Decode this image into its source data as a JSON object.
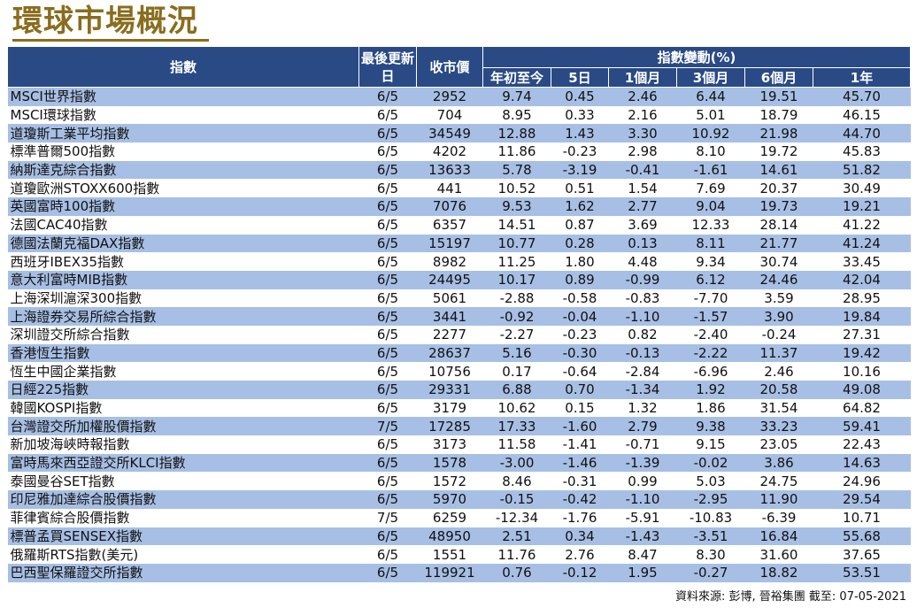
{
  "title": "環球市場概況",
  "headers": {
    "index": "指數",
    "last_update": "最後更新日",
    "close": "收市價",
    "change_group": "指數變動(%)",
    "ytd": "年初至今",
    "d5": "5日",
    "m1": "1個月",
    "m3": "3個月",
    "m6": "6個月",
    "y1": "1年"
  },
  "rows": [
    {
      "name": "MSCI世界指數",
      "date": "6/5",
      "close": "2952",
      "ytd": "9.74",
      "d5": "0.45",
      "m1": "2.46",
      "m3": "6.44",
      "m6": "19.51",
      "y1": "45.70"
    },
    {
      "name": "MSCI環球指數",
      "date": "6/5",
      "close": "704",
      "ytd": "8.95",
      "d5": "0.33",
      "m1": "2.16",
      "m3": "5.01",
      "m6": "18.79",
      "y1": "46.15"
    },
    {
      "name": "道瓊斯工業平均指數",
      "date": "6/5",
      "close": "34549",
      "ytd": "12.88",
      "d5": "1.43",
      "m1": "3.30",
      "m3": "10.92",
      "m6": "21.98",
      "y1": "44.70"
    },
    {
      "name": "標準普爾500指數",
      "date": "6/5",
      "close": "4202",
      "ytd": "11.86",
      "d5": "-0.23",
      "m1": "2.98",
      "m3": "8.10",
      "m6": "19.72",
      "y1": "45.83"
    },
    {
      "name": "納斯達克綜合指數",
      "date": "6/5",
      "close": "13633",
      "ytd": "5.78",
      "d5": "-3.19",
      "m1": "-0.41",
      "m3": "-1.61",
      "m6": "14.61",
      "y1": "51.82"
    },
    {
      "name": "道瓊歐洲STOXX600指數",
      "date": "6/5",
      "close": "441",
      "ytd": "10.52",
      "d5": "0.51",
      "m1": "1.54",
      "m3": "7.69",
      "m6": "20.37",
      "y1": "30.49"
    },
    {
      "name": "英國富時100指數",
      "date": "6/5",
      "close": "7076",
      "ytd": "9.53",
      "d5": "1.62",
      "m1": "2.77",
      "m3": "9.04",
      "m6": "19.73",
      "y1": "19.21"
    },
    {
      "name": "法國CAC40指數",
      "date": "6/5",
      "close": "6357",
      "ytd": "14.51",
      "d5": "0.87",
      "m1": "3.69",
      "m3": "12.33",
      "m6": "28.14",
      "y1": "41.22"
    },
    {
      "name": "德國法蘭克福DAX指數",
      "date": "6/5",
      "close": "15197",
      "ytd": "10.77",
      "d5": "0.28",
      "m1": "0.13",
      "m3": "8.11",
      "m6": "21.77",
      "y1": "41.24"
    },
    {
      "name": "西班牙IBEX35指數",
      "date": "6/5",
      "close": "8982",
      "ytd": "11.25",
      "d5": "1.80",
      "m1": "4.48",
      "m3": "9.34",
      "m6": "30.74",
      "y1": "33.45"
    },
    {
      "name": "意大利富時MIB指數",
      "date": "6/5",
      "close": "24495",
      "ytd": "10.17",
      "d5": "0.89",
      "m1": "-0.99",
      "m3": "6.12",
      "m6": "24.46",
      "y1": "42.04"
    },
    {
      "name": "上海深圳滬深300指數",
      "date": "6/5",
      "close": "5061",
      "ytd": "-2.88",
      "d5": "-0.58",
      "m1": "-0.83",
      "m3": "-7.70",
      "m6": "3.59",
      "y1": "28.95"
    },
    {
      "name": "上海證券交易所綜合指數",
      "date": "6/5",
      "close": "3441",
      "ytd": "-0.92",
      "d5": "-0.04",
      "m1": "-1.10",
      "m3": "-1.57",
      "m6": "3.90",
      "y1": "19.84"
    },
    {
      "name": "深圳證交所綜合指數",
      "date": "6/5",
      "close": "2277",
      "ytd": "-2.27",
      "d5": "-0.23",
      "m1": "0.82",
      "m3": "-2.40",
      "m6": "-0.24",
      "y1": "27.31"
    },
    {
      "name": "香港恆生指數",
      "date": "6/5",
      "close": "28637",
      "ytd": "5.16",
      "d5": "-0.30",
      "m1": "-0.13",
      "m3": "-2.22",
      "m6": "11.37",
      "y1": "19.42"
    },
    {
      "name": "恆生中國企業指數",
      "date": "6/5",
      "close": "10756",
      "ytd": "0.17",
      "d5": "-0.64",
      "m1": "-2.84",
      "m3": "-6.96",
      "m6": "2.46",
      "y1": "10.16"
    },
    {
      "name": "日經225指數",
      "date": "6/5",
      "close": "29331",
      "ytd": "6.88",
      "d5": "0.70",
      "m1": "-1.34",
      "m3": "1.92",
      "m6": "20.58",
      "y1": "49.08"
    },
    {
      "name": "韓國KOSPI指數",
      "date": "6/5",
      "close": "3179",
      "ytd": "10.62",
      "d5": "0.15",
      "m1": "1.32",
      "m3": "1.86",
      "m6": "31.54",
      "y1": "64.82"
    },
    {
      "name": "台灣證交所加權股價指數",
      "date": "7/5",
      "close": "17285",
      "ytd": "17.33",
      "d5": "-1.60",
      "m1": "2.79",
      "m3": "9.38",
      "m6": "33.23",
      "y1": "59.41"
    },
    {
      "name": "新加坡海峽時報指數",
      "date": "6/5",
      "close": "3173",
      "ytd": "11.58",
      "d5": "-1.41",
      "m1": "-0.71",
      "m3": "9.15",
      "m6": "23.05",
      "y1": "22.43"
    },
    {
      "name": "富時馬來西亞證交所KLCI指數",
      "date": "6/5",
      "close": "1578",
      "ytd": "-3.00",
      "d5": "-1.46",
      "m1": "-1.39",
      "m3": "-0.02",
      "m6": "3.86",
      "y1": "14.63"
    },
    {
      "name": "泰國曼谷SET指數",
      "date": "6/5",
      "close": "1572",
      "ytd": "8.46",
      "d5": "-0.31",
      "m1": "0.99",
      "m3": "5.03",
      "m6": "24.75",
      "y1": "24.96"
    },
    {
      "name": "印尼雅加達綜合股價指數",
      "date": "6/5",
      "close": "5970",
      "ytd": "-0.15",
      "d5": "-0.42",
      "m1": "-1.10",
      "m3": "-2.95",
      "m6": "11.90",
      "y1": "29.54"
    },
    {
      "name": "菲律賓綜合股價指數",
      "date": "7/5",
      "close": "6259",
      "ytd": "-12.34",
      "d5": "-1.76",
      "m1": "-5.91",
      "m3": "-10.83",
      "m6": "-6.39",
      "y1": "10.71"
    },
    {
      "name": "標普孟買SENSEX指數",
      "date": "6/5",
      "close": "48950",
      "ytd": "2.51",
      "d5": "0.34",
      "m1": "-1.43",
      "m3": "-3.51",
      "m6": "16.84",
      "y1": "55.68"
    },
    {
      "name": "俄羅斯RTS指數(美元)",
      "date": "6/5",
      "close": "1551",
      "ytd": "11.76",
      "d5": "2.76",
      "m1": "8.47",
      "m3": "8.30",
      "m6": "31.60",
      "y1": "37.65"
    },
    {
      "name": "巴西聖保羅證交所指數",
      "date": "6/5",
      "close": "119921",
      "ytd": "0.76",
      "d5": "-0.12",
      "m1": "1.95",
      "m3": "-0.27",
      "m6": "18.82",
      "y1": "53.51"
    }
  ],
  "source": "資料來源: 彭博, 晉裕集團 截至: 07-05-2021"
}
